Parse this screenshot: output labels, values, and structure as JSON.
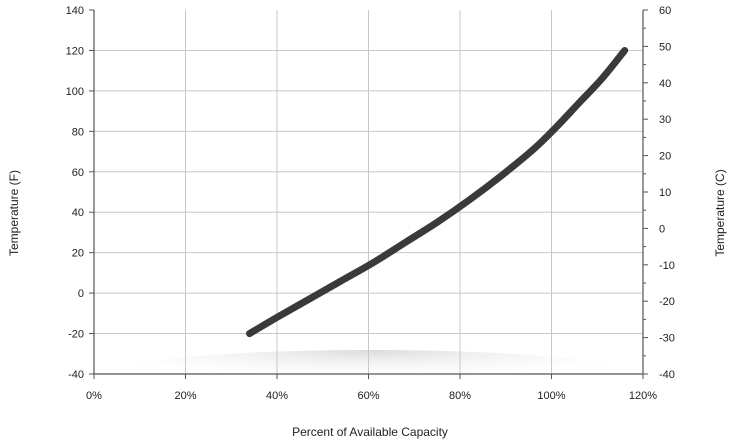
{
  "chart_data": {
    "type": "line",
    "title": "",
    "xlabel": "Percent of Available Capacity",
    "ylabel": "Temperature (F)",
    "y2label": "Temperature (C)",
    "xlim": [
      0,
      120
    ],
    "ylim": [
      -40,
      140
    ],
    "y2lim": [
      -40,
      60
    ],
    "x_ticks": [
      0,
      20,
      40,
      60,
      80,
      100,
      120
    ],
    "x_tick_labels": [
      "0%",
      "20%",
      "40%",
      "60%",
      "80%",
      "100%",
      "120%"
    ],
    "y_ticks": [
      -40,
      -20,
      0,
      20,
      40,
      60,
      80,
      100,
      120,
      140
    ],
    "y_tick_labels": [
      "-40",
      "-20",
      "0",
      "20",
      "40",
      "60",
      "80",
      "100",
      "120",
      "140"
    ],
    "y2_ticks": [
      -40,
      -30,
      -20,
      -10,
      0,
      10,
      20,
      30,
      40,
      50,
      60
    ],
    "y2_tick_labels": [
      "-40",
      "-30",
      "-20",
      "-10",
      "0",
      "10",
      "20",
      "30",
      "40",
      "50",
      "60"
    ],
    "grid": true,
    "series": [
      {
        "x": [
          34,
          40,
          47,
          54,
          61,
          68,
          75,
          82,
          89,
          96,
          101,
          106,
          111,
          116
        ],
        "y": [
          -20,
          -12,
          -3,
          6,
          15,
          25,
          35,
          46,
          58,
          71,
          82,
          94,
          106,
          120
        ]
      }
    ],
    "colors": {
      "line": "#3a3a3a",
      "grid": "#c8c8c8",
      "axis": "#555555"
    }
  }
}
